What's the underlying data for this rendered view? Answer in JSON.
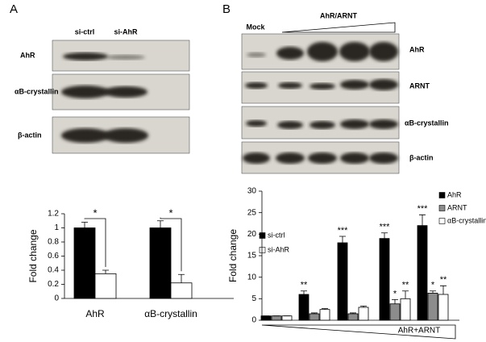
{
  "panels": [
    {
      "letter": "A",
      "lanes": [
        "si-ctrl",
        "si-AhR"
      ],
      "rows": [
        "AhR",
        "αB-crystallin",
        "β-actin"
      ]
    },
    {
      "letter": "B",
      "lanes": [
        "Mock",
        "AhR/ARNT"
      ],
      "rows": [
        "AhR",
        "ARNT",
        "αB-crystallin",
        "β-actin"
      ]
    }
  ],
  "chart_data": [
    {
      "type": "bar",
      "y_label": "Fold change",
      "categories": [
        "AhR",
        "αB-crystallin"
      ],
      "annotations": [
        "*",
        "*"
      ],
      "series": [
        {
          "name": "si-ctrl",
          "color": "#000000",
          "values": [
            1,
            1
          ],
          "errors": [
            0.08,
            0.1
          ]
        },
        {
          "name": "si-AhR",
          "color": "#ffffff",
          "values": [
            0.35,
            0.22
          ],
          "errors": [
            0.05,
            0.12
          ]
        }
      ],
      "ylim": [
        0,
        1.2
      ],
      "yticks": [
        0,
        0.2,
        0.4,
        0.6,
        0.8,
        1,
        1.2
      ]
    },
    {
      "type": "bar",
      "y_label": "Fold change",
      "x_label": "AhR+ARNT",
      "categories": [
        null,
        null,
        null,
        null,
        null
      ],
      "series": [
        {
          "name": "AhR",
          "color": "#000000",
          "values": [
            1,
            6,
            18,
            19,
            22
          ],
          "errors": [
            0,
            0.8,
            1.5,
            1.3,
            2.5
          ],
          "annotations": [
            null,
            "**",
            "***",
            "***",
            "***"
          ]
        },
        {
          "name": "ARNT",
          "color": "#8c8c8c",
          "values": [
            1,
            1.5,
            1.5,
            3.8,
            6.3
          ],
          "errors": [
            0,
            0.2,
            0.2,
            1,
            0.5
          ],
          "annotations": [
            null,
            null,
            null,
            "*",
            "*"
          ]
        },
        {
          "name": "αB-crystallin",
          "color": "#ffffff",
          "values": [
            1,
            2.5,
            3,
            5,
            6
          ],
          "errors": [
            0,
            0.2,
            0.3,
            1.8,
            2
          ],
          "annotations": [
            null,
            null,
            null,
            "**",
            "**"
          ]
        }
      ],
      "ylim": [
        0,
        30
      ],
      "yticks": [
        0,
        5,
        10,
        15,
        20,
        25,
        30
      ]
    }
  ]
}
